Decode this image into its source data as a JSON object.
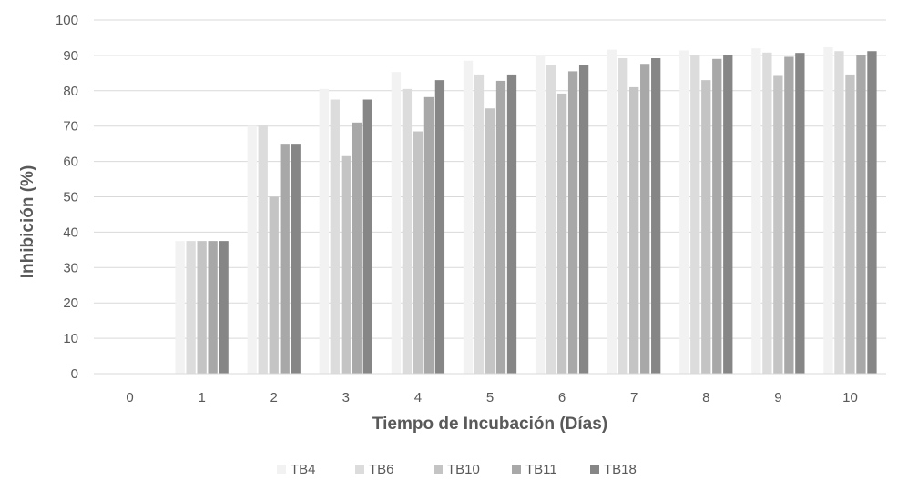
{
  "chart_data": {
    "type": "bar",
    "xlabel": "Tiempo de Incubación (Días)",
    "ylabel": "Inhibición (%)",
    "ylim": [
      0,
      100
    ],
    "yticks": [
      0,
      10,
      20,
      30,
      40,
      50,
      60,
      70,
      80,
      90,
      100
    ],
    "categories": [
      "0",
      "1",
      "2",
      "3",
      "4",
      "5",
      "6",
      "7",
      "8",
      "9",
      "10"
    ],
    "grid": true,
    "legend": "bottom",
    "series": [
      {
        "name": "TB4",
        "color": "#f2f2f2",
        "values": [
          0,
          37.5,
          70.0,
          80.5,
          85.3,
          88.5,
          90.2,
          91.6,
          91.4,
          92.0,
          92.3
        ]
      },
      {
        "name": "TB6",
        "color": "#dcdcdc",
        "values": [
          0,
          37.5,
          70.2,
          77.5,
          80.5,
          84.6,
          87.2,
          89.2,
          90.1,
          90.8,
          91.2
        ]
      },
      {
        "name": "TB10",
        "color": "#c4c4c4",
        "values": [
          0,
          37.5,
          50.0,
          61.5,
          68.5,
          75.0,
          79.2,
          81.0,
          83.0,
          84.2,
          84.6
        ]
      },
      {
        "name": "TB11",
        "color": "#a8a8a8",
        "values": [
          0,
          37.5,
          65.0,
          71.0,
          78.2,
          82.8,
          85.5,
          87.6,
          89.0,
          89.6,
          90.0
        ]
      },
      {
        "name": "TB18",
        "color": "#868686",
        "values": [
          0,
          37.5,
          65.0,
          77.5,
          83.0,
          84.6,
          87.2,
          89.2,
          90.2,
          90.7,
          91.2
        ]
      }
    ]
  }
}
